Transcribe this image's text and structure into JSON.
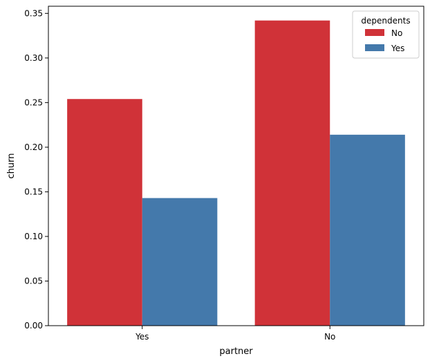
{
  "chart_data": {
    "type": "bar",
    "title": "",
    "xlabel": "partner",
    "ylabel": "churn",
    "categories": [
      "Yes",
      "No"
    ],
    "series": [
      {
        "name": "No",
        "color": "#d03238",
        "values": [
          0.254,
          0.342
        ]
      },
      {
        "name": "Yes",
        "color": "#4479ab",
        "values": [
          0.143,
          0.214
        ]
      }
    ],
    "ylim": [
      0,
      0.358
    ],
    "yticks": [
      0.0,
      0.05,
      0.1,
      0.15,
      0.2,
      0.25,
      0.3,
      0.35
    ],
    "ytick_labels": [
      "0.00",
      "0.05",
      "0.10",
      "0.15",
      "0.20",
      "0.25",
      "0.30",
      "0.35"
    ],
    "grid": false,
    "legend": {
      "title": "dependents",
      "placement": "top-right"
    }
  }
}
